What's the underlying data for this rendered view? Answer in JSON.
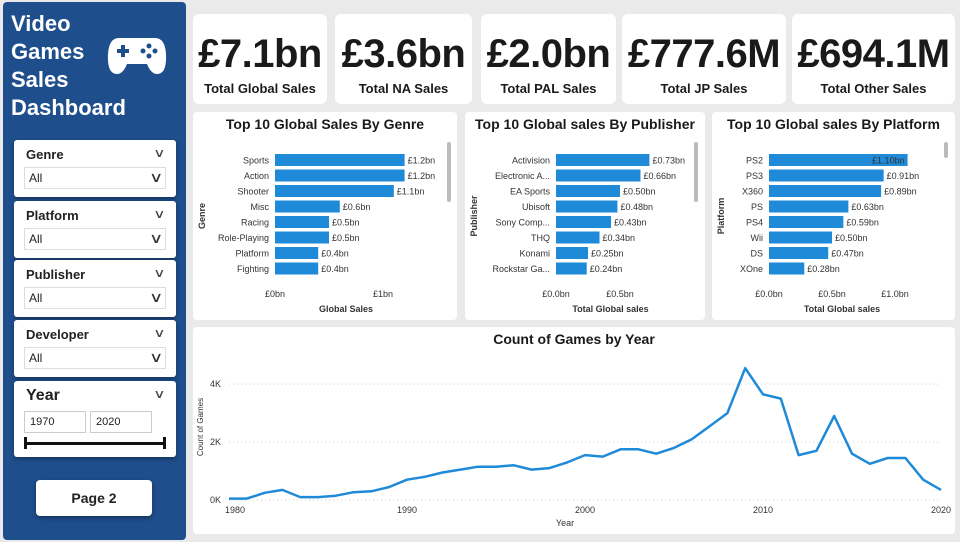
{
  "sidebar": {
    "title_lines": [
      "Video",
      "Games",
      "Sales",
      "Dashboard"
    ],
    "icon": "gamepad-icon",
    "slicers": [
      {
        "label": "Genre",
        "value": "All"
      },
      {
        "label": "Platform",
        "value": "All"
      },
      {
        "label": "Publisher",
        "value": "All"
      },
      {
        "label": "Developer",
        "value": "All"
      }
    ],
    "year": {
      "label": "Year",
      "from": "1970",
      "to": "2020"
    },
    "page_button": "Page 2"
  },
  "kpis": [
    {
      "value": "£7.1bn",
      "label": "Total Global Sales"
    },
    {
      "value": "£3.6bn",
      "label": "Total NA Sales"
    },
    {
      "value": "£2.0bn",
      "label": "Total PAL Sales"
    },
    {
      "value": "£777.6M",
      "label": "Total JP Sales"
    },
    {
      "value": "£694.1M",
      "label": "Total Other Sales"
    }
  ],
  "colors": {
    "bar": "#1f8ad8",
    "line": "#1f8ad8",
    "sidebar": "#1f4e8c"
  },
  "chart_data": [
    {
      "type": "bar",
      "orientation": "horizontal",
      "title": "Top 10 Global Sales By Genre",
      "xlabel": "Global Sales",
      "ylabel": "Genre",
      "categories": [
        "Sports",
        "Action",
        "Shooter",
        "Misc",
        "Racing",
        "Role-Playing",
        "Platform",
        "Fighting"
      ],
      "values": [
        1.2,
        1.2,
        1.1,
        0.6,
        0.5,
        0.5,
        0.4,
        0.4
      ],
      "data_labels": [
        "£1.2bn",
        "£1.2bn",
        "£1.1bn",
        "£0.6bn",
        "£0.5bn",
        "£0.5bn",
        "£0.4bn",
        "£0.4bn"
      ],
      "xticks": [
        "£0bn",
        "£1bn"
      ],
      "xtick_values": [
        0,
        1
      ]
    },
    {
      "type": "bar",
      "orientation": "horizontal",
      "title": "Top 10 Global sales By Publisher",
      "xlabel": "Total Global sales",
      "ylabel": "Publisher",
      "categories": [
        "Activision",
        "Electronic A...",
        "EA Sports",
        "Ubisoft",
        "Sony Comp...",
        "THQ",
        "Konami",
        "Rockstar Ga..."
      ],
      "values": [
        0.73,
        0.66,
        0.5,
        0.48,
        0.43,
        0.34,
        0.25,
        0.24
      ],
      "data_labels": [
        "£0.73bn",
        "£0.66bn",
        "£0.50bn",
        "£0.48bn",
        "£0.43bn",
        "£0.34bn",
        "£0.25bn",
        "£0.24bn"
      ],
      "xticks": [
        "£0.0bn",
        "£0.5bn"
      ],
      "xtick_values": [
        0,
        0.5
      ]
    },
    {
      "type": "bar",
      "orientation": "horizontal",
      "title": "Top 10 Global sales By Platform",
      "xlabel": "Total Global sales",
      "ylabel": "Platform",
      "categories": [
        "PS2",
        "PS3",
        "X360",
        "PS",
        "PS4",
        "Wii",
        "DS",
        "XOne"
      ],
      "values": [
        1.1,
        0.91,
        0.89,
        0.63,
        0.59,
        0.5,
        0.47,
        0.28
      ],
      "data_labels": [
        "£1.10bn",
        "£0.91bn",
        "£0.89bn",
        "£0.63bn",
        "£0.59bn",
        "£0.50bn",
        "£0.47bn",
        "£0.28bn"
      ],
      "xticks": [
        "£0.0bn",
        "£0.5bn",
        "£1.0bn"
      ],
      "xtick_values": [
        0,
        0.5,
        1.0
      ]
    },
    {
      "type": "line",
      "title": "Count of Games by Year",
      "xlabel": "Year",
      "ylabel": "Count of Games",
      "x": [
        1980,
        1981,
        1982,
        1983,
        1984,
        1985,
        1986,
        1987,
        1988,
        1989,
        1990,
        1991,
        1992,
        1993,
        1994,
        1995,
        1996,
        1997,
        1998,
        1999,
        2000,
        2001,
        2002,
        2003,
        2004,
        2005,
        2006,
        2007,
        2008,
        2009,
        2010,
        2011,
        2012,
        2013,
        2014,
        2015,
        2016,
        2017,
        2018,
        2019,
        2020
      ],
      "y": [
        50,
        50,
        250,
        350,
        100,
        100,
        150,
        270,
        300,
        450,
        700,
        800,
        950,
        1050,
        1150,
        1150,
        1200,
        1050,
        1100,
        1300,
        1550,
        1500,
        1750,
        1750,
        1600,
        1800,
        2100,
        2550,
        3000,
        4550,
        3650,
        3500,
        1550,
        1700,
        2900,
        1600,
        1250,
        1450,
        1450,
        700,
        350
      ],
      "xticks": [
        "1980",
        "1990",
        "2000",
        "2010",
        "2020"
      ],
      "xtick_values": [
        1980,
        1990,
        2000,
        2010,
        2020
      ],
      "yticks": [
        "0K",
        "2K",
        "4K"
      ],
      "ytick_values": [
        0,
        2000,
        4000
      ],
      "xlim": [
        1980,
        2020
      ],
      "ylim": [
        0,
        4800
      ],
      "grid": true
    }
  ]
}
